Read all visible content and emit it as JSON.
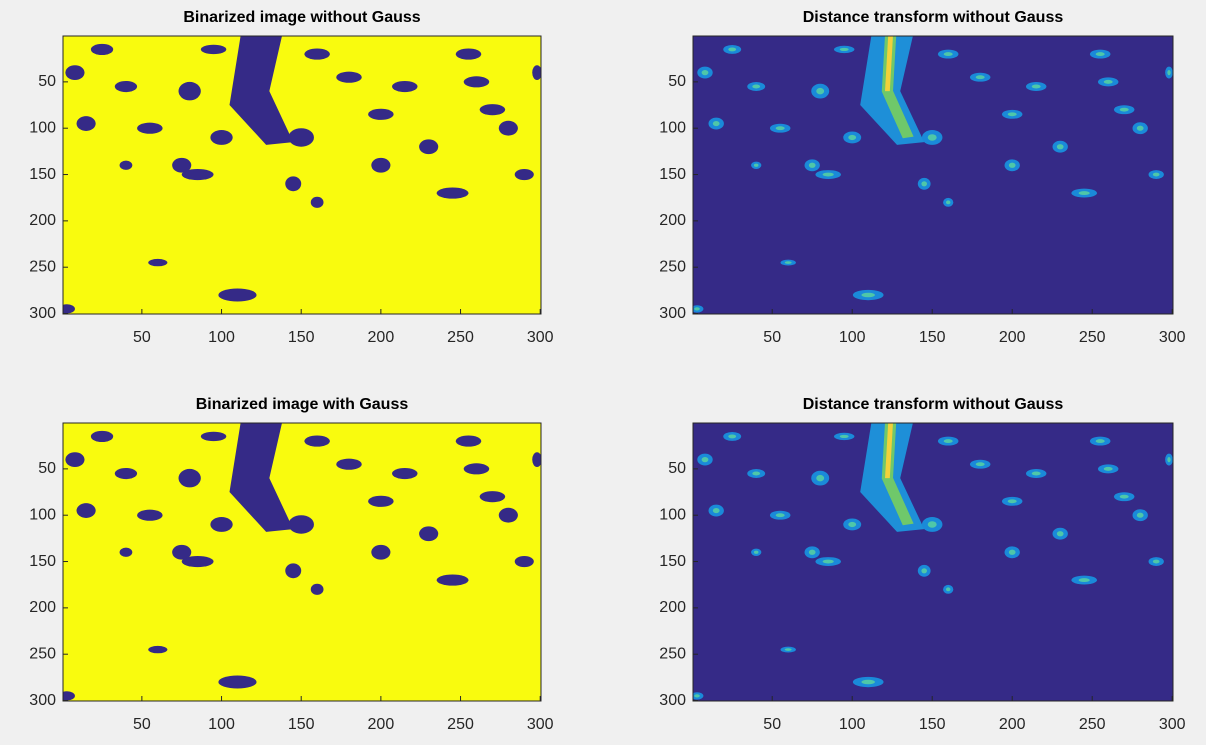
{
  "chart_data": [
    {
      "type": "image",
      "title": "Binarized image without Gauss",
      "style": "binary",
      "xlim": [
        0.5,
        300.5
      ],
      "ylim": [
        0.5,
        300.5
      ],
      "y_reversed": true,
      "xticks": [
        50,
        100,
        150,
        200,
        250,
        300
      ],
      "yticks": [
        50,
        100,
        150,
        200,
        250,
        300
      ]
    },
    {
      "type": "image",
      "title": "Distance transform without Gauss",
      "style": "distance",
      "xlim": [
        0.5,
        300.5
      ],
      "ylim": [
        0.5,
        300.5
      ],
      "y_reversed": true,
      "xticks": [
        50,
        100,
        150,
        200,
        250,
        300
      ],
      "yticks": [
        50,
        100,
        150,
        200,
        250,
        300
      ]
    },
    {
      "type": "image",
      "title": "Binarized image with Gauss",
      "style": "binary",
      "xlim": [
        0.5,
        300.5
      ],
      "ylim": [
        0.5,
        300.5
      ],
      "y_reversed": true,
      "xticks": [
        50,
        100,
        150,
        200,
        250,
        300
      ],
      "yticks": [
        50,
        100,
        150,
        200,
        250,
        300
      ]
    },
    {
      "type": "image",
      "title": "Distance transform without Gauss",
      "style": "distance",
      "xlim": [
        0.5,
        300.5
      ],
      "ylim": [
        0.5,
        300.5
      ],
      "y_reversed": true,
      "xticks": [
        50,
        100,
        150,
        200,
        250,
        300
      ],
      "yticks": [
        50,
        100,
        150,
        200,
        250,
        300
      ]
    }
  ]
}
